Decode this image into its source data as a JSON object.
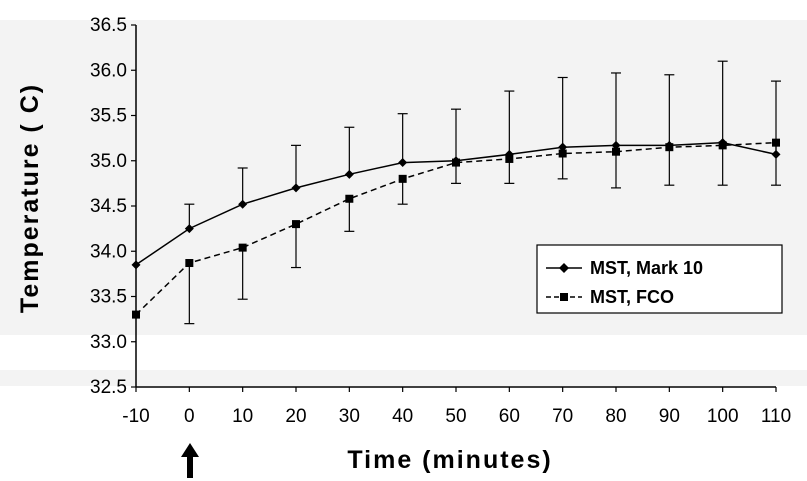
{
  "chart_data": {
    "type": "line",
    "xlabel": "Time (minutes)",
    "ylabel": "Temperature ( C)",
    "x": [
      -10,
      0,
      10,
      20,
      30,
      40,
      50,
      60,
      70,
      80,
      90,
      100,
      110
    ],
    "x_ticks": [
      "-10",
      "0",
      "10",
      "20",
      "30",
      "40",
      "50",
      "60",
      "70",
      "80",
      "90",
      "100",
      "110"
    ],
    "y_ticks": [
      "32.5",
      "33.0",
      "33.5",
      "34.0",
      "34.5",
      "35.0",
      "35.5",
      "36.0",
      "36.5"
    ],
    "xlim": [
      -10,
      110
    ],
    "ylim": [
      32.5,
      36.5
    ],
    "grid": false,
    "legend_position": "right",
    "marker_arrow_at_x": 0,
    "series": [
      {
        "name": "MST, Mark 10",
        "marker": "diamond",
        "line_style": "solid",
        "color": "#000000",
        "values": [
          33.85,
          34.25,
          34.52,
          34.7,
          34.85,
          34.98,
          35.0,
          35.07,
          35.15,
          35.17,
          35.17,
          35.2,
          35.07
        ],
        "error_upper": [
          null,
          34.52,
          34.92,
          35.17,
          35.37,
          35.52,
          35.57,
          35.77,
          35.92,
          35.97,
          35.95,
          36.1,
          35.88
        ],
        "error_lower": [
          null,
          null,
          null,
          null,
          null,
          null,
          null,
          null,
          null,
          null,
          null,
          null,
          null
        ]
      },
      {
        "name": "MST, FCO",
        "marker": "square",
        "line_style": "dashed",
        "color": "#000000",
        "values": [
          33.3,
          33.87,
          34.04,
          34.3,
          34.58,
          34.8,
          34.98,
          35.02,
          35.08,
          35.1,
          35.15,
          35.17,
          35.2
        ],
        "error_upper": [
          null,
          null,
          null,
          null,
          null,
          null,
          null,
          null,
          null,
          null,
          null,
          null,
          null
        ],
        "error_lower": [
          null,
          33.2,
          33.47,
          33.82,
          34.22,
          34.52,
          34.75,
          34.75,
          34.8,
          34.7,
          34.73,
          34.73,
          34.73
        ]
      }
    ]
  }
}
